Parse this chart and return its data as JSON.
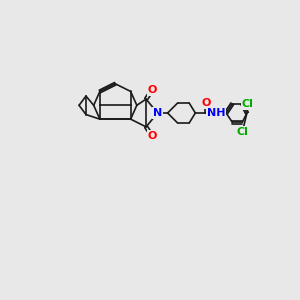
{
  "background_color": "#e8e8e8",
  "bond_color": "#1a1a1a",
  "atom_colors": {
    "O": "#ff0000",
    "N": "#0000ff",
    "Cl": "#00aa00",
    "C": "#1a1a1a"
  },
  "figsize": [
    3.0,
    3.0
  ],
  "dpi": 100
}
